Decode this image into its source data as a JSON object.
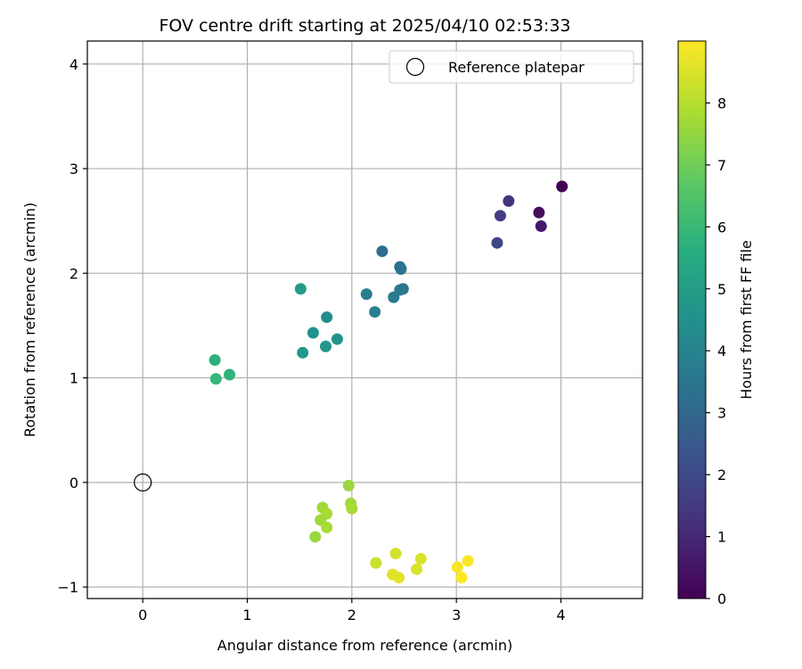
{
  "chart_data": {
    "type": "scatter",
    "title": "FOV centre drift starting at 2025/04/10 02:53:33",
    "xlabel": "Angular distance from reference (arcmin)",
    "ylabel": "Rotation from reference (arcmin)",
    "xlim": [
      -0.53,
      4.78
    ],
    "ylim": [
      -1.11,
      4.22
    ],
    "xticks": [
      0,
      1,
      2,
      3,
      4
    ],
    "yticks": [
      -1,
      0,
      1,
      2,
      3,
      4
    ],
    "grid": true,
    "legend": {
      "placement": "top-right",
      "entries": [
        "Reference platepar"
      ]
    },
    "reference_point": {
      "name": "Reference platepar",
      "x": 0,
      "y": 0
    },
    "colorbar": {
      "label": "Hours from first FF file",
      "colormap": "viridis",
      "range": [
        0,
        9
      ],
      "ticks": [
        0,
        1,
        2,
        3,
        4,
        5,
        6,
        7,
        8
      ]
    },
    "points": [
      {
        "x": 4.01,
        "y": 2.83,
        "c": 0.0
      },
      {
        "x": 3.79,
        "y": 2.58,
        "c": 0.3
      },
      {
        "x": 3.81,
        "y": 2.45,
        "c": 0.6
      },
      {
        "x": 3.5,
        "y": 2.69,
        "c": 1.3
      },
      {
        "x": 3.42,
        "y": 2.55,
        "c": 1.6
      },
      {
        "x": 3.39,
        "y": 2.29,
        "c": 1.9
      },
      {
        "x": 2.29,
        "y": 2.21,
        "c": 3.2
      },
      {
        "x": 2.46,
        "y": 2.06,
        "c": 3.3
      },
      {
        "x": 2.47,
        "y": 2.04,
        "c": 3.4
      },
      {
        "x": 2.49,
        "y": 1.85,
        "c": 3.5
      },
      {
        "x": 2.46,
        "y": 1.84,
        "c": 3.6
      },
      {
        "x": 2.4,
        "y": 1.77,
        "c": 3.7
      },
      {
        "x": 2.14,
        "y": 1.8,
        "c": 3.8
      },
      {
        "x": 2.22,
        "y": 1.63,
        "c": 3.9
      },
      {
        "x": 1.76,
        "y": 1.58,
        "c": 4.4
      },
      {
        "x": 1.63,
        "y": 1.43,
        "c": 4.5
      },
      {
        "x": 1.86,
        "y": 1.37,
        "c": 4.6
      },
      {
        "x": 1.75,
        "y": 1.3,
        "c": 4.7
      },
      {
        "x": 1.53,
        "y": 1.24,
        "c": 4.8
      },
      {
        "x": 1.51,
        "y": 1.85,
        "c": 4.9
      },
      {
        "x": 0.69,
        "y": 1.17,
        "c": 5.7
      },
      {
        "x": 0.83,
        "y": 1.03,
        "c": 5.8
      },
      {
        "x": 0.7,
        "y": 0.99,
        "c": 5.9
      },
      {
        "x": 1.97,
        "y": -0.03,
        "c": 7.6
      },
      {
        "x": 1.99,
        "y": -0.2,
        "c": 7.7
      },
      {
        "x": 2.0,
        "y": -0.25,
        "c": 7.8
      },
      {
        "x": 1.72,
        "y": -0.24,
        "c": 7.7
      },
      {
        "x": 1.76,
        "y": -0.3,
        "c": 7.8
      },
      {
        "x": 1.7,
        "y": -0.36,
        "c": 7.7
      },
      {
        "x": 1.76,
        "y": -0.43,
        "c": 7.8
      },
      {
        "x": 1.65,
        "y": -0.52,
        "c": 7.6
      },
      {
        "x": 2.23,
        "y": -0.77,
        "c": 8.3
      },
      {
        "x": 2.42,
        "y": -0.68,
        "c": 8.4
      },
      {
        "x": 2.66,
        "y": -0.73,
        "c": 8.5
      },
      {
        "x": 2.62,
        "y": -0.83,
        "c": 8.5
      },
      {
        "x": 2.39,
        "y": -0.88,
        "c": 8.6
      },
      {
        "x": 2.45,
        "y": -0.91,
        "c": 8.6
      },
      {
        "x": 3.01,
        "y": -0.81,
        "c": 8.9
      },
      {
        "x": 3.11,
        "y": -0.75,
        "c": 8.95
      },
      {
        "x": 3.05,
        "y": -0.91,
        "c": 9.0
      }
    ]
  }
}
